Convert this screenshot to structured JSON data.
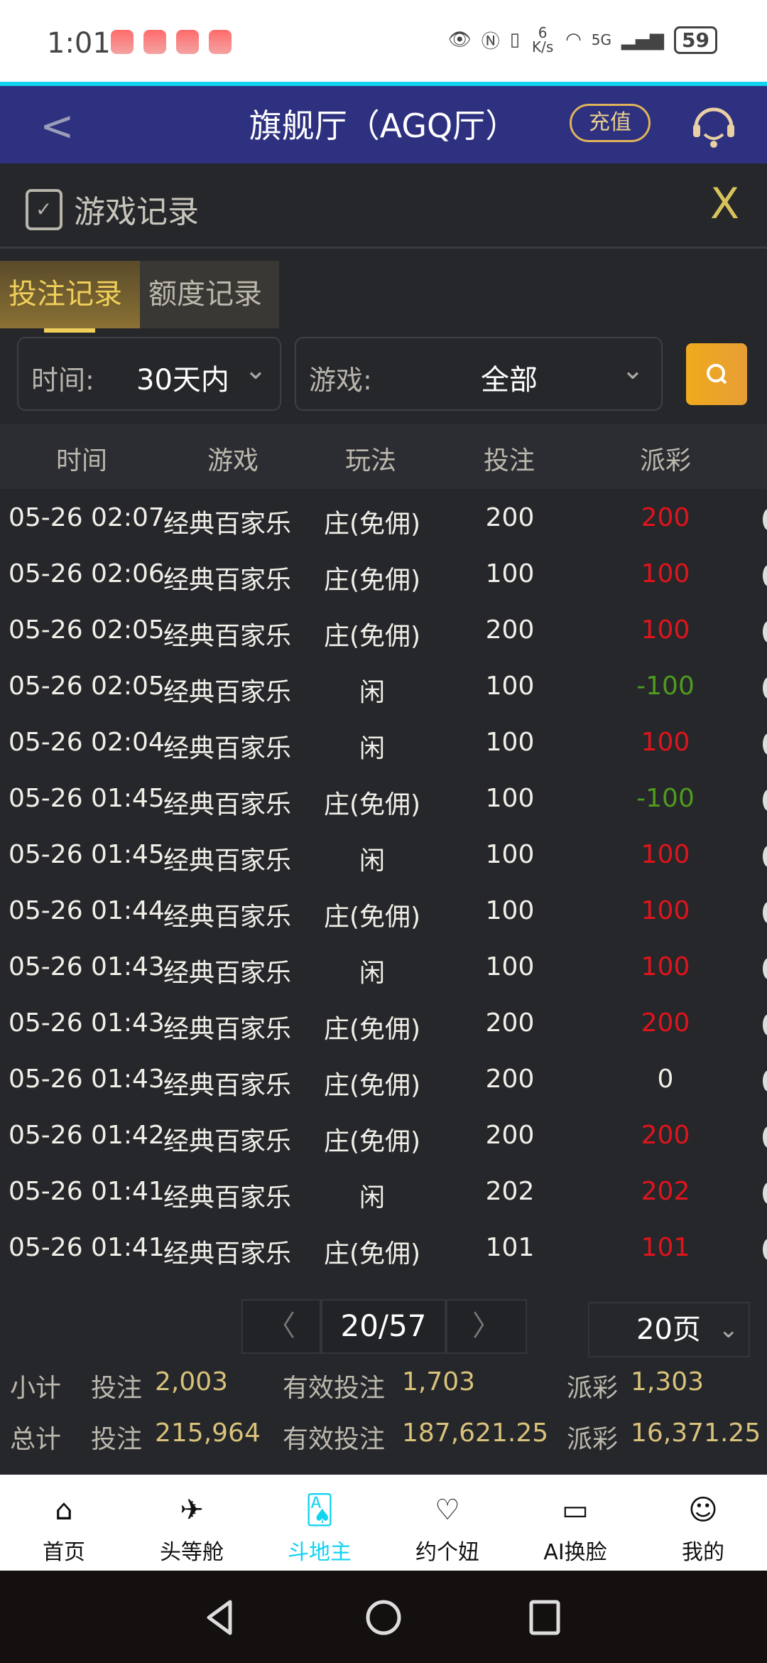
{
  "status_bar": {
    "time": "1:01",
    "net_speed": "6 K/s",
    "network": "5G",
    "battery": "59"
  },
  "header": {
    "title": "旗舰厅（AGQ厅）",
    "recharge": "充值",
    "icons": [
      "back-icon",
      "customer-service-icon"
    ]
  },
  "panel": {
    "title": "游戏记录",
    "close": "X"
  },
  "tabs": [
    {
      "label": "投注记录",
      "active": true
    },
    {
      "label": "额度记录",
      "active": false
    }
  ],
  "filters": {
    "time_label": "时间:",
    "time_value": "30天内",
    "game_label": "游戏:",
    "game_value": "全部"
  },
  "table": {
    "headers": [
      "时间",
      "游戏",
      "玩法",
      "投注",
      "派彩"
    ],
    "rows": [
      [
        "05-26 02:07",
        "经典百家乐",
        "庄(免佣)",
        "200",
        "200"
      ],
      [
        "05-26 02:06",
        "经典百家乐",
        "庄(免佣)",
        "100",
        "100"
      ],
      [
        "05-26 02:05",
        "经典百家乐",
        "庄(免佣)",
        "200",
        "100"
      ],
      [
        "05-26 02:05",
        "经典百家乐",
        "闲",
        "100",
        "-100"
      ],
      [
        "05-26 02:04",
        "经典百家乐",
        "闲",
        "100",
        "100"
      ],
      [
        "05-26 01:45",
        "经典百家乐",
        "庄(免佣)",
        "100",
        "-100"
      ],
      [
        "05-26 01:45",
        "经典百家乐",
        "闲",
        "100",
        "100"
      ],
      [
        "05-26 01:44",
        "经典百家乐",
        "庄(免佣)",
        "100",
        "100"
      ],
      [
        "05-26 01:43",
        "经典百家乐",
        "闲",
        "100",
        "100"
      ],
      [
        "05-26 01:43",
        "经典百家乐",
        "庄(免佣)",
        "200",
        "200"
      ],
      [
        "05-26 01:43",
        "经典百家乐",
        "庄(免佣)",
        "200",
        "0"
      ],
      [
        "05-26 01:42",
        "经典百家乐",
        "庄(免佣)",
        "200",
        "200"
      ],
      [
        "05-26 01:41",
        "经典百家乐",
        "闲",
        "202",
        "202"
      ],
      [
        "05-26 01:41",
        "经典百家乐",
        "庄(免佣)",
        "101",
        "101"
      ]
    ]
  },
  "pagination": {
    "page": "20/57",
    "page_size": "20页"
  },
  "subtotal": {
    "label": "小计",
    "bet_label": "投注",
    "bet": "2,003",
    "valid_label": "有效投注",
    "valid": "1,703",
    "payout_label": "派彩",
    "payout": "1,303"
  },
  "total": {
    "label": "总计",
    "bet_label": "投注",
    "bet": "215,964",
    "valid_label": "有效投注",
    "valid": "187,621.25",
    "payout_label": "派彩",
    "payout": "16,371.25"
  },
  "bottom_nav": [
    {
      "label": "首页",
      "icon": "home-icon"
    },
    {
      "label": "头等舱",
      "icon": "plane-badge-icon"
    },
    {
      "label": "斗地主",
      "icon": "cards-icon",
      "active": true
    },
    {
      "label": "约个妞",
      "icon": "heart-chat-icon"
    },
    {
      "label": "AI换脸",
      "icon": "video-camera-icon"
    },
    {
      "label": "我的",
      "icon": "user-icon"
    }
  ],
  "colors": {
    "header_bg": "#2e3080",
    "accent_gold": "#d9c27a",
    "positive": "#e0141a",
    "negative": "#4e9a1e",
    "active_nav": "#12d3f0"
  }
}
